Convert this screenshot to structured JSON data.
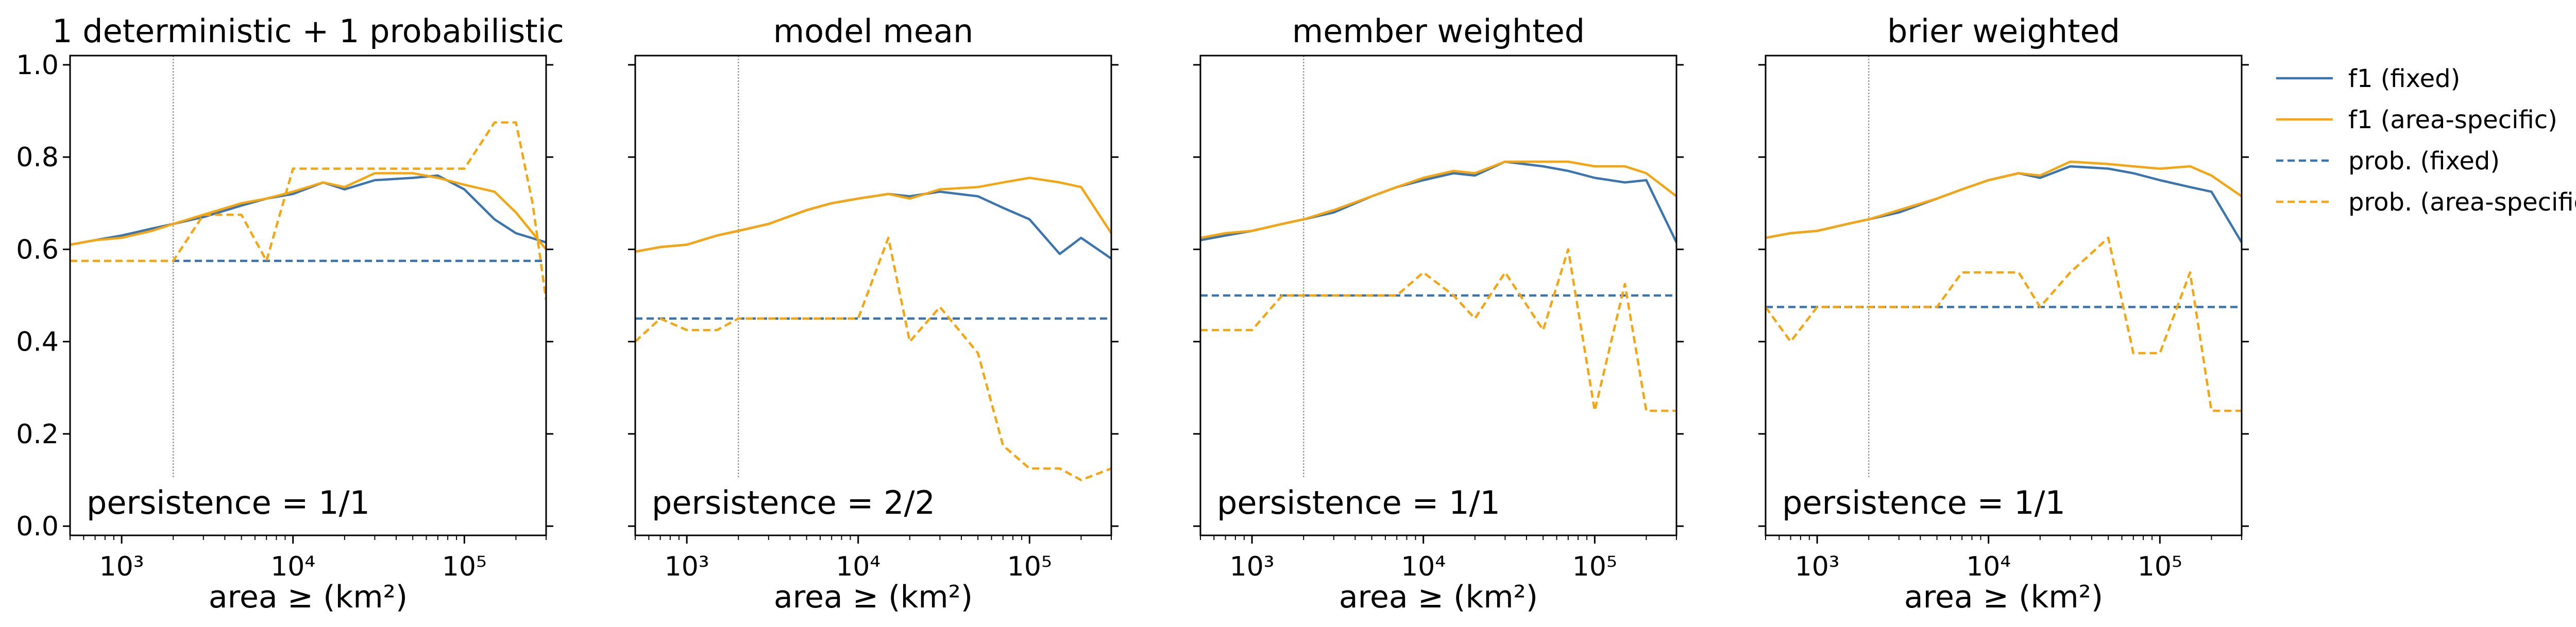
{
  "chart_data": [
    {
      "type": "line",
      "title": "1 deterministic + 1 probabilistic",
      "xlabel": "area ≥ (km²)",
      "ylabel": "",
      "xscale": "log",
      "xlim": [
        500,
        300000
      ],
      "ylim": [
        -0.02,
        1.02
      ],
      "x_tick_labels": [
        "10³",
        "10⁴",
        "10⁵"
      ],
      "y_tick_labels": [
        "0.0",
        "0.2",
        "0.4",
        "0.6",
        "0.8",
        "1.0"
      ],
      "show_y_tick_labels": true,
      "vline_x": 2000,
      "annotation": "persistence = 1/1",
      "series": [
        {
          "name": "f1 (fixed)",
          "x": [
            500,
            700,
            1000,
            1500,
            2000,
            3000,
            5000,
            7000,
            10000,
            15000,
            20000,
            30000,
            50000,
            70000,
            100000,
            150000,
            200000,
            300000
          ],
          "y": [
            0.61,
            0.62,
            0.63,
            0.645,
            0.655,
            0.67,
            0.695,
            0.71,
            0.72,
            0.745,
            0.73,
            0.75,
            0.755,
            0.76,
            0.73,
            0.665,
            0.635,
            0.615
          ]
        },
        {
          "name": "f1 (area-specific)",
          "x": [
            500,
            700,
            1000,
            1500,
            2000,
            3000,
            5000,
            7000,
            10000,
            15000,
            20000,
            30000,
            50000,
            70000,
            100000,
            150000,
            200000,
            300000
          ],
          "y": [
            0.61,
            0.62,
            0.625,
            0.64,
            0.655,
            0.675,
            0.7,
            0.71,
            0.725,
            0.745,
            0.735,
            0.765,
            0.765,
            0.755,
            0.74,
            0.725,
            0.68,
            0.6
          ]
        },
        {
          "name": "prob. (fixed)",
          "x": [
            500,
            300000
          ],
          "y": [
            0.575,
            0.575
          ]
        },
        {
          "name": "prob. (area-specific)",
          "x": [
            500,
            1000,
            2000,
            3000,
            5000,
            7000,
            10000,
            15000,
            20000,
            30000,
            50000,
            70000,
            100000,
            150000,
            200000,
            250000,
            300000
          ],
          "y": [
            0.575,
            0.575,
            0.575,
            0.675,
            0.675,
            0.575,
            0.775,
            0.775,
            0.775,
            0.775,
            0.775,
            0.775,
            0.775,
            0.875,
            0.875,
            0.7,
            0.49
          ]
        }
      ]
    },
    {
      "type": "line",
      "title": "model mean",
      "xlabel": "area ≥ (km²)",
      "ylabel": "",
      "xscale": "log",
      "xlim": [
        500,
        300000
      ],
      "ylim": [
        -0.02,
        1.02
      ],
      "x_tick_labels": [
        "10³",
        "10⁴",
        "10⁵"
      ],
      "y_tick_labels": [
        "0.0",
        "0.2",
        "0.4",
        "0.6",
        "0.8",
        "1.0"
      ],
      "show_y_tick_labels": false,
      "vline_x": 2000,
      "annotation": "persistence = 2/2",
      "series": [
        {
          "name": "f1 (fixed)",
          "x": [
            500,
            700,
            1000,
            1500,
            2000,
            3000,
            5000,
            7000,
            10000,
            15000,
            20000,
            30000,
            50000,
            70000,
            100000,
            150000,
            200000,
            300000
          ],
          "y": [
            0.595,
            0.605,
            0.61,
            0.63,
            0.64,
            0.655,
            0.685,
            0.7,
            0.71,
            0.72,
            0.715,
            0.725,
            0.715,
            0.69,
            0.665,
            0.59,
            0.625,
            0.58
          ]
        },
        {
          "name": "f1 (area-specific)",
          "x": [
            500,
            700,
            1000,
            1500,
            2000,
            3000,
            5000,
            7000,
            10000,
            15000,
            20000,
            30000,
            50000,
            70000,
            100000,
            150000,
            200000,
            300000
          ],
          "y": [
            0.595,
            0.605,
            0.61,
            0.63,
            0.64,
            0.655,
            0.685,
            0.7,
            0.71,
            0.72,
            0.71,
            0.73,
            0.735,
            0.745,
            0.755,
            0.745,
            0.735,
            0.635
          ]
        },
        {
          "name": "prob. (fixed)",
          "x": [
            500,
            300000
          ],
          "y": [
            0.45,
            0.45
          ]
        },
        {
          "name": "prob. (area-specific)",
          "x": [
            500,
            700,
            1000,
            1500,
            2000,
            3000,
            5000,
            7000,
            10000,
            15000,
            20000,
            30000,
            50000,
            70000,
            100000,
            150000,
            200000,
            300000
          ],
          "y": [
            0.4,
            0.45,
            0.425,
            0.425,
            0.45,
            0.45,
            0.45,
            0.45,
            0.45,
            0.625,
            0.4,
            0.475,
            0.375,
            0.175,
            0.125,
            0.125,
            0.1,
            0.125
          ]
        }
      ]
    },
    {
      "type": "line",
      "title": "member weighted",
      "xlabel": "area ≥ (km²)",
      "ylabel": "",
      "xscale": "log",
      "xlim": [
        500,
        300000
      ],
      "ylim": [
        -0.02,
        1.02
      ],
      "x_tick_labels": [
        "10³",
        "10⁴",
        "10⁵"
      ],
      "y_tick_labels": [
        "0.0",
        "0.2",
        "0.4",
        "0.6",
        "0.8",
        "1.0"
      ],
      "show_y_tick_labels": false,
      "vline_x": 2000,
      "annotation": "persistence = 1/1",
      "series": [
        {
          "name": "f1 (fixed)",
          "x": [
            500,
            700,
            1000,
            1500,
            2000,
            3000,
            5000,
            7000,
            10000,
            15000,
            20000,
            30000,
            50000,
            70000,
            100000,
            150000,
            200000,
            300000
          ],
          "y": [
            0.62,
            0.63,
            0.64,
            0.655,
            0.665,
            0.68,
            0.715,
            0.735,
            0.75,
            0.765,
            0.76,
            0.79,
            0.78,
            0.77,
            0.755,
            0.745,
            0.75,
            0.615
          ]
        },
        {
          "name": "f1 (area-specific)",
          "x": [
            500,
            700,
            1000,
            1500,
            2000,
            3000,
            5000,
            7000,
            10000,
            15000,
            20000,
            30000,
            50000,
            70000,
            100000,
            150000,
            200000,
            300000
          ],
          "y": [
            0.625,
            0.635,
            0.64,
            0.655,
            0.665,
            0.685,
            0.715,
            0.735,
            0.755,
            0.77,
            0.765,
            0.79,
            0.79,
            0.79,
            0.78,
            0.78,
            0.765,
            0.715
          ]
        },
        {
          "name": "prob. (fixed)",
          "x": [
            500,
            300000
          ],
          "y": [
            0.5,
            0.5
          ]
        },
        {
          "name": "prob. (area-specific)",
          "x": [
            500,
            700,
            1000,
            1500,
            2000,
            3000,
            5000,
            7000,
            10000,
            15000,
            20000,
            30000,
            50000,
            70000,
            100000,
            150000,
            200000,
            300000
          ],
          "y": [
            0.425,
            0.425,
            0.425,
            0.5,
            0.5,
            0.5,
            0.5,
            0.5,
            0.55,
            0.5,
            0.45,
            0.55,
            0.425,
            0.6,
            0.25,
            0.525,
            0.25,
            0.25
          ]
        }
      ]
    },
    {
      "type": "line",
      "title": "brier weighted",
      "xlabel": "area ≥ (km²)",
      "ylabel": "",
      "xscale": "log",
      "xlim": [
        500,
        300000
      ],
      "ylim": [
        -0.02,
        1.02
      ],
      "x_tick_labels": [
        "10³",
        "10⁴",
        "10⁵"
      ],
      "y_tick_labels": [
        "0.0",
        "0.2",
        "0.4",
        "0.6",
        "0.8",
        "1.0"
      ],
      "show_y_tick_labels": false,
      "vline_x": 2000,
      "annotation": "persistence = 1/1",
      "series": [
        {
          "name": "f1 (fixed)",
          "x": [
            500,
            700,
            1000,
            1500,
            2000,
            3000,
            5000,
            7000,
            10000,
            15000,
            20000,
            30000,
            50000,
            70000,
            100000,
            150000,
            200000,
            300000
          ],
          "y": [
            0.625,
            0.635,
            0.64,
            0.655,
            0.665,
            0.68,
            0.71,
            0.73,
            0.75,
            0.765,
            0.755,
            0.78,
            0.775,
            0.765,
            0.75,
            0.735,
            0.725,
            0.615
          ]
        },
        {
          "name": "f1 (area-specific)",
          "x": [
            500,
            700,
            1000,
            1500,
            2000,
            3000,
            5000,
            7000,
            10000,
            15000,
            20000,
            30000,
            50000,
            70000,
            100000,
            150000,
            200000,
            300000
          ],
          "y": [
            0.625,
            0.635,
            0.64,
            0.655,
            0.665,
            0.685,
            0.71,
            0.73,
            0.75,
            0.765,
            0.76,
            0.79,
            0.785,
            0.78,
            0.775,
            0.78,
            0.76,
            0.715
          ]
        },
        {
          "name": "prob. (fixed)",
          "x": [
            500,
            300000
          ],
          "y": [
            0.475,
            0.475
          ]
        },
        {
          "name": "prob. (area-specific)",
          "x": [
            500,
            700,
            1000,
            1500,
            2000,
            3000,
            5000,
            7000,
            10000,
            15000,
            20000,
            30000,
            50000,
            70000,
            100000,
            150000,
            200000,
            300000
          ],
          "y": [
            0.475,
            0.4,
            0.475,
            0.475,
            0.475,
            0.475,
            0.475,
            0.55,
            0.55,
            0.55,
            0.475,
            0.55,
            0.625,
            0.375,
            0.375,
            0.55,
            0.25,
            0.25
          ]
        }
      ]
    }
  ],
  "legend": {
    "placement": "right",
    "entries": [
      {
        "label": "f1 (fixed)",
        "color": "#3b75af",
        "style": "solid"
      },
      {
        "label": "f1 (area-specific)",
        "color": "#f5a50f",
        "style": "solid"
      },
      {
        "label": "prob. (fixed)",
        "color": "#3b75af",
        "style": "dashed"
      },
      {
        "label": "prob. (area-specific)",
        "color": "#f5a50f",
        "style": "dashed"
      }
    ]
  },
  "colors": {
    "fixed": "#3b75af",
    "area_specific": "#f5a50f",
    "reference_line": "#999999"
  }
}
